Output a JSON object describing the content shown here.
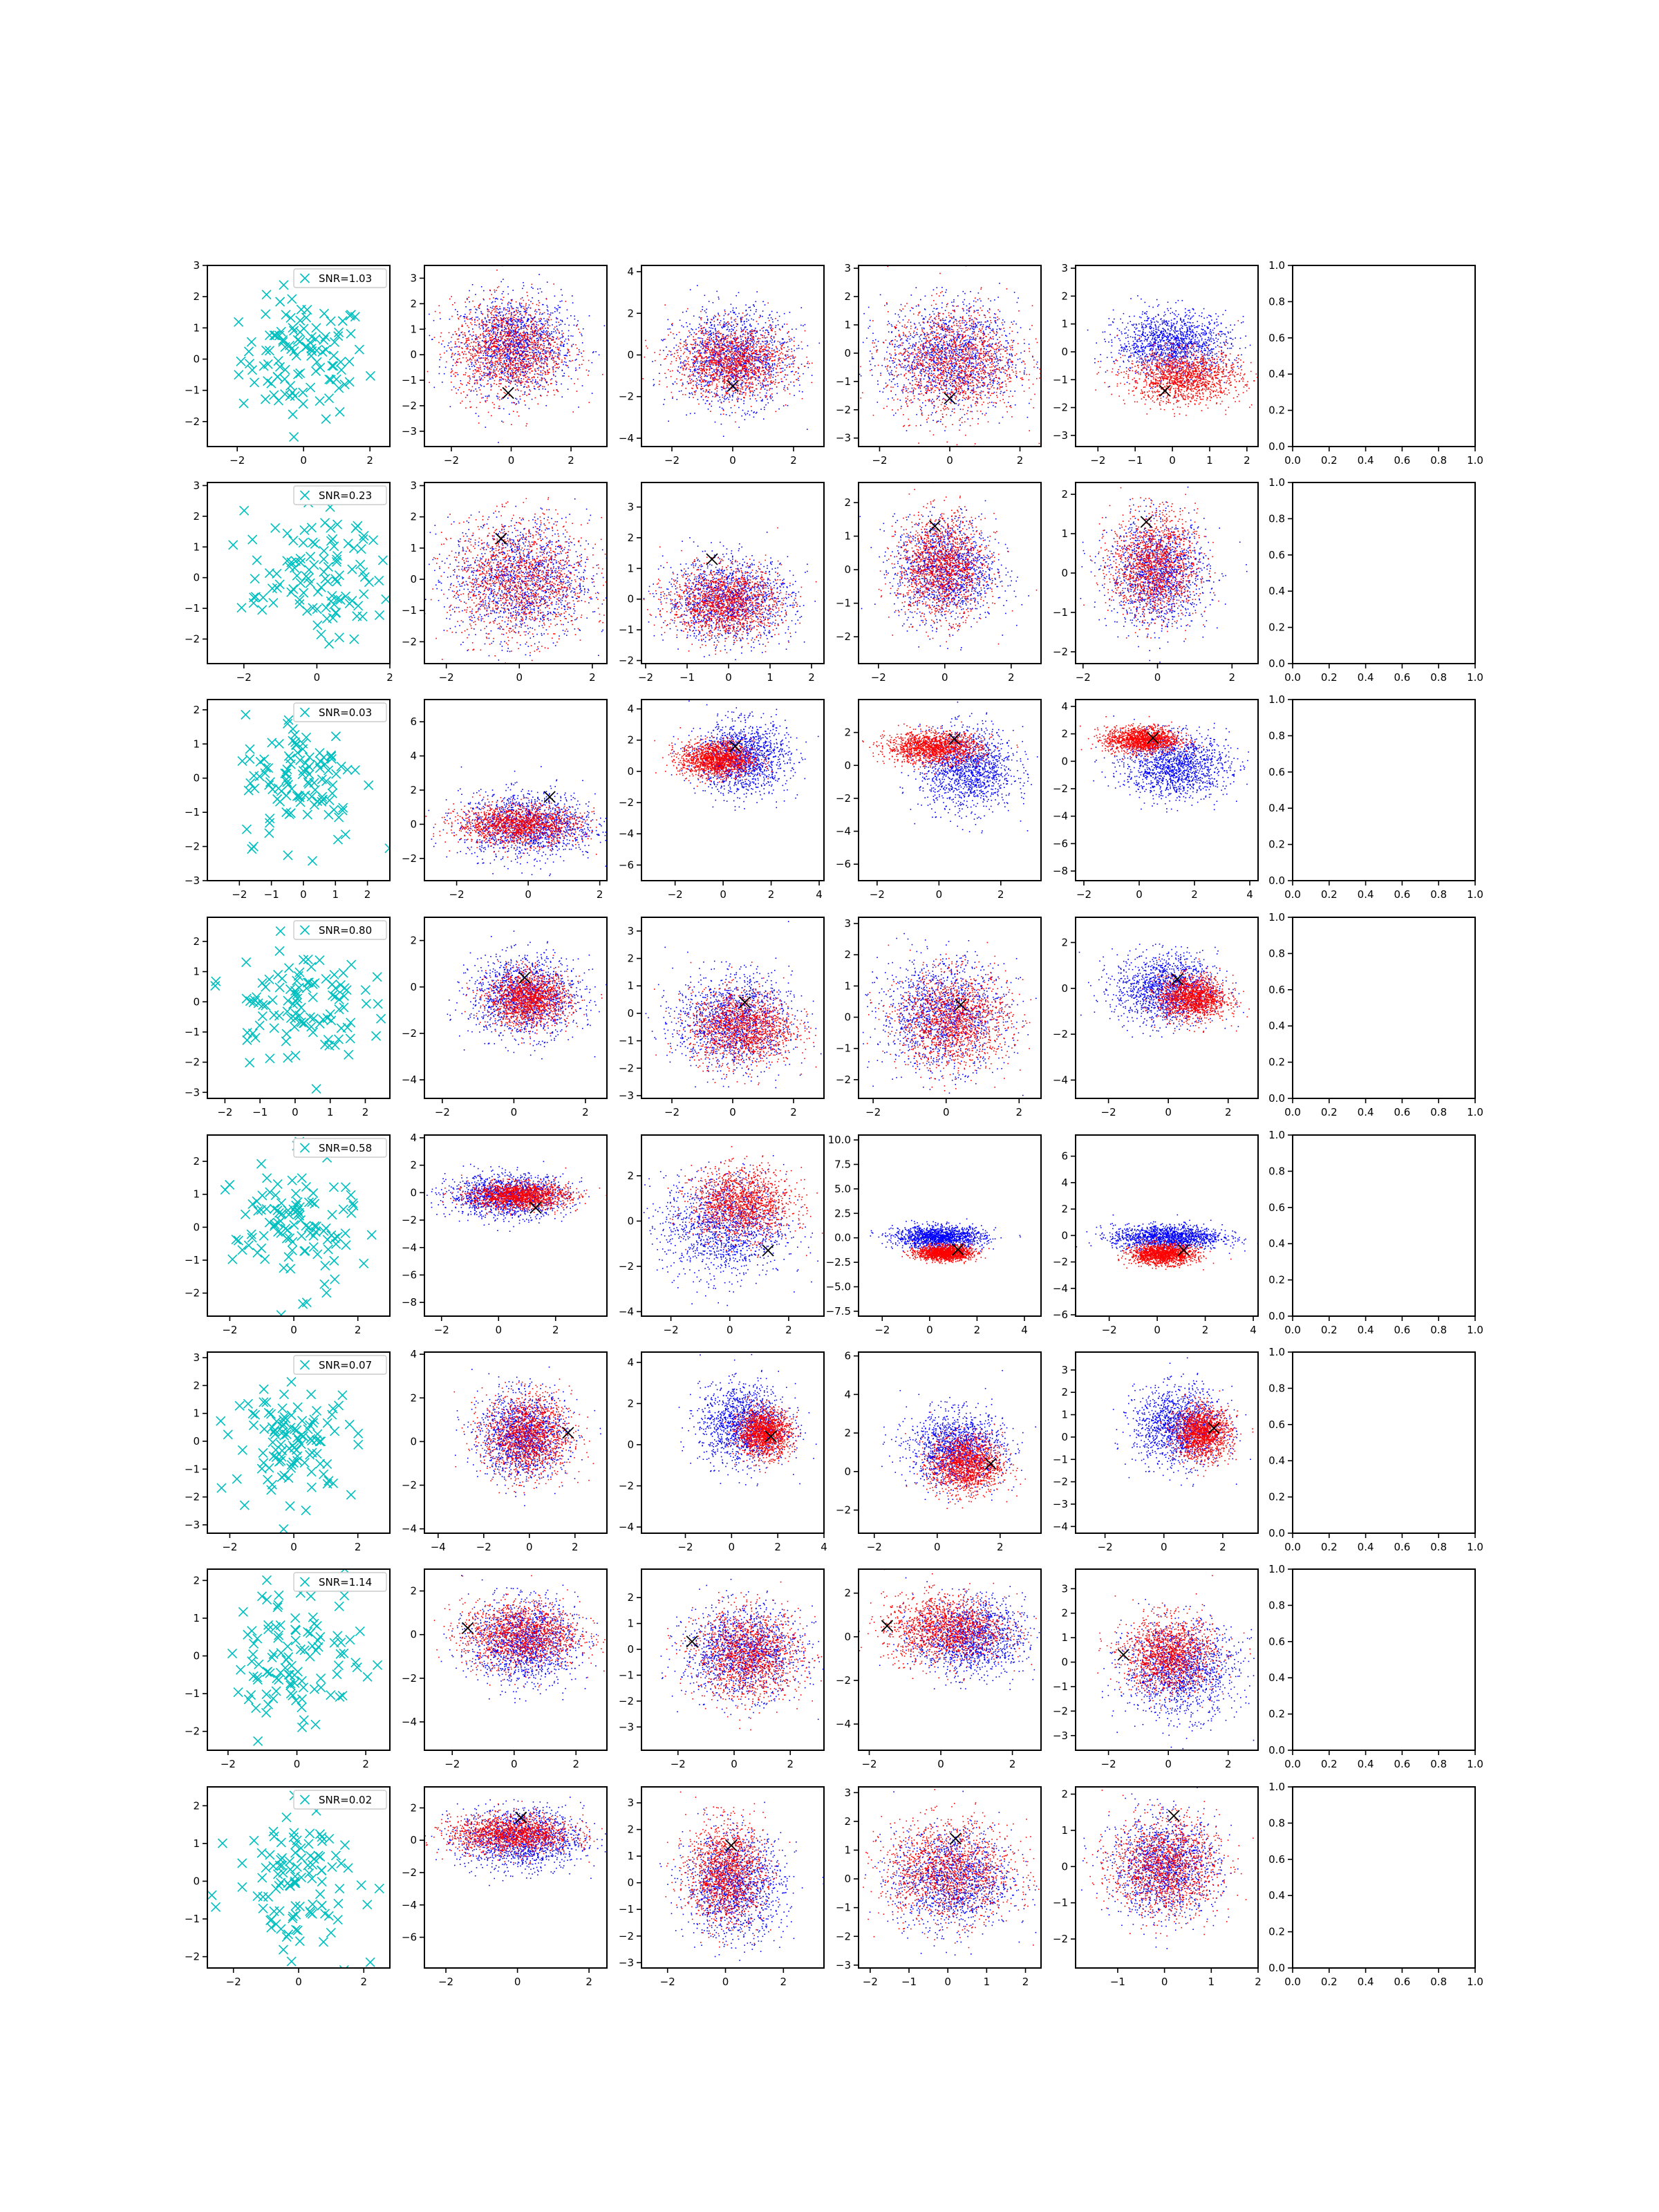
{
  "figure": {
    "type": "scatter-grid",
    "rows": 8,
    "cols": 6
  },
  "colors": {
    "samples": "#00bfbf",
    "class_a": "#0000ff",
    "class_b": "#ff0000",
    "marker": "#000000"
  },
  "legend_prefix": "SNR=",
  "empty_axis_ticks": [
    "0.0",
    "0.2",
    "0.4",
    "0.6",
    "0.8",
    "1.0"
  ],
  "chart_data": [
    {
      "row": 0,
      "snr": "1.03",
      "xlims": [
        [
          -2.9,
          2.6
        ],
        [
          -2.9,
          3.2
        ],
        [
          -3.0,
          3.0
        ],
        [
          -2.6,
          2.6
        ],
        [
          -2.6,
          2.3
        ]
      ],
      "ylims": [
        [
          -2.8,
          3.0
        ],
        [
          -3.6,
          3.5
        ],
        [
          -4.4,
          4.3
        ],
        [
          -3.3,
          3.1
        ],
        [
          -3.4,
          3.1
        ]
      ],
      "xticks": [
        [
          -2,
          0,
          2
        ],
        [
          -2,
          0,
          2
        ],
        [
          -2,
          0,
          2
        ],
        [
          -2,
          0,
          2
        ],
        [
          -2,
          -1,
          0,
          1,
          2
        ]
      ],
      "yticks": [
        [
          -2,
          -1,
          0,
          1,
          2,
          3
        ],
        [
          -3,
          -2,
          -1,
          0,
          1,
          2,
          3
        ],
        [
          -4,
          -2,
          0,
          2,
          4
        ],
        [
          -3,
          -2,
          -1,
          0,
          1,
          2,
          3
        ],
        [
          -3,
          -2,
          -1,
          0,
          1,
          2,
          3
        ]
      ],
      "marks": [
        [
          -0.1,
          -1.5
        ],
        [
          0.0,
          -1.5
        ],
        [
          0.0,
          -1.6
        ],
        [
          -0.2,
          -1.4
        ]
      ],
      "blue": [
        [
          0.1,
          0.4,
          1,
          1
        ],
        [
          0.0,
          -0.1,
          1,
          1.2
        ],
        [
          0.0,
          -0.1,
          1,
          1
        ],
        [
          0.0,
          0.3,
          0.8,
          0.6
        ]
      ],
      "red": [
        [
          -0.1,
          0.2,
          1,
          1
        ],
        [
          0.0,
          -0.3,
          1,
          0.9
        ],
        [
          0.1,
          -0.3,
          1,
          1
        ],
        [
          0.3,
          -0.9,
          0.8,
          0.5
        ]
      ]
    },
    {
      "row": 1,
      "snr": "0.23",
      "xlims": [
        [
          -3.0,
          2.0
        ],
        [
          -2.6,
          2.4
        ],
        [
          -2.1,
          2.3
        ],
        [
          -2.6,
          2.9
        ],
        [
          -2.2,
          2.7
        ]
      ],
      "ylims": [
        [
          -2.8,
          3.1
        ],
        [
          -2.7,
          3.1
        ],
        [
          -2.1,
          3.8
        ],
        [
          -2.8,
          2.6
        ],
        [
          -2.3,
          2.3
        ]
      ],
      "xticks": [
        [
          -2,
          0,
          2
        ],
        [
          -2,
          0,
          2
        ],
        [
          -2,
          -1,
          0,
          1,
          2
        ],
        [
          -2,
          0,
          2
        ],
        [
          -2,
          0,
          2
        ]
      ],
      "yticks": [
        [
          -2,
          -1,
          0,
          1,
          2,
          3
        ],
        [
          -2,
          -1,
          0,
          1,
          2,
          3
        ],
        [
          -2,
          -1,
          0,
          1,
          2,
          3
        ],
        [
          -2,
          -1,
          0,
          1,
          2
        ],
        [
          -2,
          -1,
          0,
          1,
          2
        ]
      ],
      "marks": [
        [
          -0.5,
          1.3
        ],
        [
          -0.4,
          1.3
        ],
        [
          -0.3,
          1.3
        ],
        [
          -0.3,
          1.3
        ]
      ],
      "blue": [
        [
          0.0,
          0.0,
          1,
          1
        ],
        [
          0.0,
          0.0,
          0.8,
          0.7
        ],
        [
          0.0,
          0.0,
          0.8,
          0.8
        ],
        [
          0.0,
          0.0,
          0.7,
          0.7
        ]
      ],
      "red": [
        [
          0.0,
          0.0,
          1,
          1
        ],
        [
          -0.1,
          -0.1,
          0.7,
          0.6
        ],
        [
          -0.1,
          0.1,
          0.7,
          0.8
        ],
        [
          -0.1,
          0.2,
          0.6,
          0.7
        ]
      ]
    },
    {
      "row": 2,
      "snr": "0.03",
      "xlims": [
        [
          -3.0,
          2.7
        ],
        [
          -2.9,
          2.2
        ],
        [
          -3.4,
          4.2
        ],
        [
          -2.6,
          3.3
        ],
        [
          -2.3,
          4.3
        ]
      ],
      "ylims": [
        [
          -3.0,
          2.3
        ],
        [
          -3.3,
          7.3
        ],
        [
          -7.0,
          4.6
        ],
        [
          -7.0,
          4.0
        ],
        [
          -8.7,
          4.5
        ]
      ],
      "xticks": [
        [
          -2,
          -1,
          0,
          1,
          2
        ],
        [
          -2,
          0,
          2
        ],
        [
          -2,
          0,
          2,
          4
        ],
        [
          -2,
          0,
          2
        ],
        [
          -2,
          0,
          2,
          4
        ]
      ],
      "yticks": [
        [
          -3,
          -2,
          -1,
          0,
          1,
          2
        ],
        [
          -2,
          0,
          2,
          4,
          6
        ],
        [
          -6,
          -4,
          -2,
          0,
          2,
          4
        ],
        [
          -6,
          -4,
          -2,
          0,
          2
        ],
        [
          -8,
          -6,
          -4,
          -2,
          0,
          2,
          4
        ]
      ],
      "marks": [
        [
          0.6,
          1.6
        ],
        [
          0.5,
          1.6
        ],
        [
          0.5,
          1.6
        ],
        [
          0.5,
          1.7
        ]
      ],
      "blue": [
        [
          0.0,
          0.0,
          1,
          1
        ],
        [
          0.8,
          0.9,
          1,
          1.2
        ],
        [
          0.9,
          -0.2,
          0.8,
          1.3
        ],
        [
          1.3,
          -0.3,
          1,
          1.2
        ]
      ],
      "red": [
        [
          -0.3,
          0.0,
          0.9,
          0.6
        ],
        [
          -0.3,
          0.8,
          0.8,
          0.6
        ],
        [
          -0.2,
          1.1,
          0.8,
          0.5
        ],
        [
          0.1,
          1.6,
          0.7,
          0.5
        ]
      ]
    },
    {
      "row": 3,
      "snr": "0.80",
      "xlims": [
        [
          -2.5,
          2.7
        ],
        [
          -2.5,
          2.6
        ],
        [
          -3.0,
          3.0
        ],
        [
          -2.4,
          2.6
        ],
        [
          -3.1,
          3.0
        ]
      ],
      "ylims": [
        [
          -3.2,
          2.8
        ],
        [
          -4.8,
          3.0
        ],
        [
          -3.1,
          3.5
        ],
        [
          -2.6,
          3.2
        ],
        [
          -4.8,
          3.1
        ]
      ],
      "xticks": [
        [
          -2,
          -1,
          0,
          1,
          2
        ],
        [
          -2,
          0,
          2
        ],
        [
          -2,
          0,
          2
        ],
        [
          -2,
          0,
          2
        ],
        [
          -2,
          0,
          2
        ]
      ],
      "yticks": [
        [
          -3,
          -2,
          -1,
          0,
          1,
          2
        ],
        [
          -4,
          -2,
          0,
          2
        ],
        [
          -3,
          -2,
          -1,
          0,
          1,
          2,
          3
        ],
        [
          -2,
          -1,
          0,
          1,
          2,
          3
        ],
        [
          -4,
          -2,
          0,
          2
        ]
      ],
      "marks": [
        [
          0.3,
          0.4
        ],
        [
          0.4,
          0.4
        ],
        [
          0.4,
          0.4
        ],
        [
          0.3,
          0.4
        ]
      ],
      "blue": [
        [
          0.3,
          -0.4,
          0.8,
          0.9
        ],
        [
          0.0,
          -0.3,
          1,
          0.9
        ],
        [
          -0.1,
          0.1,
          0.9,
          0.9
        ],
        [
          -0.1,
          0.0,
          0.9,
          0.8
        ]
      ],
      "red": [
        [
          0.4,
          -0.5,
          0.6,
          0.6
        ],
        [
          0.3,
          -0.5,
          0.9,
          0.7
        ],
        [
          0.2,
          -0.1,
          0.8,
          0.8
        ],
        [
          0.8,
          -0.4,
          0.6,
          0.5
        ]
      ]
    },
    {
      "row": 4,
      "snr": "0.58",
      "xlims": [
        [
          -2.7,
          3.0
        ],
        [
          -2.6,
          3.8
        ],
        [
          -3.0,
          3.2
        ],
        [
          -3.0,
          4.7
        ],
        [
          -3.4,
          4.2
        ]
      ],
      "ylims": [
        [
          -2.7,
          2.8
        ],
        [
          -9.0,
          4.2
        ],
        [
          -4.2,
          3.8
        ],
        [
          -8.0,
          10.5
        ],
        [
          -6.1,
          7.6
        ]
      ],
      "xticks": [
        [
          -2,
          0,
          2
        ],
        [
          -2,
          0,
          2
        ],
        [
          -2,
          0,
          2
        ],
        [
          -2,
          0,
          2,
          4
        ],
        [
          -2,
          0,
          2,
          4
        ]
      ],
      "yticks": [
        [
          -2,
          -1,
          0,
          1,
          2
        ],
        [
          -8,
          -6,
          -4,
          -2,
          0,
          2,
          4
        ],
        [
          -4,
          -2,
          0,
          2
        ],
        [
          -7.5,
          -5.0,
          -2.5,
          0.0,
          2.5,
          5.0,
          7.5,
          10.0
        ],
        [
          -6,
          -4,
          -2,
          0,
          2,
          4,
          6
        ]
      ],
      "marks": [
        [
          1.3,
          -1.1
        ],
        [
          1.3,
          -1.3
        ],
        [
          1.2,
          -1.2
        ],
        [
          1.1,
          -1.1
        ]
      ],
      "blue": [
        [
          0.3,
          -0.2,
          1.1,
          0.8
        ],
        [
          -0.2,
          -0.2,
          1.1,
          1.2
        ],
        [
          0.4,
          0.1,
          1,
          0.6
        ],
        [
          0.4,
          -0.1,
          1.2,
          0.5
        ]
      ],
      "red": [
        [
          0.7,
          -0.2,
          0.9,
          0.5
        ],
        [
          0.4,
          0.8,
          0.9,
          0.8
        ],
        [
          0.6,
          -1.5,
          0.6,
          0.4
        ],
        [
          0.2,
          -1.4,
          0.7,
          0.4
        ]
      ]
    },
    {
      "row": 5,
      "snr": "0.07",
      "xlims": [
        [
          -2.7,
          3.0
        ],
        [
          -4.6,
          3.4
        ],
        [
          -3.9,
          4.0
        ],
        [
          -2.5,
          3.3
        ],
        [
          -3.0,
          3.2
        ]
      ],
      "ylims": [
        [
          -3.3,
          3.2
        ],
        [
          -4.2,
          4.1
        ],
        [
          -4.3,
          4.5
        ],
        [
          -3.2,
          6.2
        ],
        [
          -4.3,
          3.8
        ]
      ],
      "xticks": [
        [
          -2,
          0,
          2
        ],
        [
          -4,
          -2,
          0,
          2
        ],
        [
          -2,
          0,
          2,
          4
        ],
        [
          -2,
          0,
          2
        ],
        [
          -2,
          0,
          2
        ]
      ],
      "yticks": [
        [
          -3,
          -2,
          -1,
          0,
          1,
          2,
          3
        ],
        [
          -4,
          -2,
          0,
          2,
          4
        ],
        [
          -4,
          -2,
          0,
          2,
          4
        ],
        [
          -2,
          0,
          2,
          4,
          6
        ],
        [
          -4,
          -3,
          -2,
          -1,
          0,
          1,
          2,
          3
        ]
      ],
      "marks": [
        [
          1.7,
          0.4
        ],
        [
          1.7,
          0.4
        ],
        [
          1.7,
          0.4
        ],
        [
          1.7,
          0.4
        ]
      ],
      "blue": [
        [
          -0.3,
          0.3,
          1,
          1
        ],
        [
          0.5,
          1.0,
          1,
          1
        ],
        [
          0.6,
          1.2,
          0.8,
          1
        ],
        [
          0.5,
          0.5,
          0.8,
          0.9
        ]
      ],
      "red": [
        [
          -0.1,
          0.3,
          1,
          1
        ],
        [
          1.4,
          0.6,
          0.6,
          0.6
        ],
        [
          0.9,
          0.4,
          0.6,
          0.8
        ],
        [
          1.3,
          0.2,
          0.5,
          0.6
        ]
      ]
    },
    {
      "row": 6,
      "snr": "1.14",
      "xlims": [
        [
          -2.6,
          2.7
        ],
        [
          -2.9,
          3.0
        ],
        [
          -3.3,
          3.2
        ],
        [
          -2.3,
          2.8
        ],
        [
          -3.1,
          3.0
        ]
      ],
      "ylims": [
        [
          -2.5,
          2.3
        ],
        [
          -5.3,
          3.0
        ],
        [
          -3.9,
          3.1
        ],
        [
          -5.2,
          3.1
        ],
        [
          -3.6,
          3.8
        ]
      ],
      "xticks": [
        [
          -2,
          0,
          2
        ],
        [
          -2,
          0,
          2
        ],
        [
          -2,
          0,
          2
        ],
        [
          -2,
          0,
          2
        ],
        [
          -2,
          0,
          2
        ]
      ],
      "yticks": [
        [
          -2,
          -1,
          0,
          1,
          2
        ],
        [
          -4,
          -2,
          0,
          2
        ],
        [
          -3,
          -2,
          -1,
          0,
          1,
          2
        ],
        [
          -4,
          -2,
          0,
          2
        ],
        [
          -3,
          -2,
          -1,
          0,
          1,
          2,
          3
        ]
      ],
      "marks": [
        [
          -1.5,
          0.3
        ],
        [
          -1.5,
          0.3
        ],
        [
          -1.5,
          0.5
        ],
        [
          -1.5,
          0.3
        ]
      ],
      "blue": [
        [
          0.3,
          -0.3,
          0.9,
          1
        ],
        [
          0.3,
          -0.1,
          1.1,
          0.9
        ],
        [
          0.8,
          0.0,
          0.8,
          0.9
        ],
        [
          0.4,
          -0.3,
          1,
          1
        ]
      ],
      "red": [
        [
          0.2,
          0.0,
          1,
          0.8
        ],
        [
          0.5,
          -0.2,
          1,
          0.9
        ],
        [
          0.1,
          0.4,
          0.9,
          0.8
        ],
        [
          0.0,
          0.3,
          0.8,
          0.8
        ]
      ]
    },
    {
      "row": 7,
      "snr": "0.02",
      "xlims": [
        [
          -2.8,
          2.8
        ],
        [
          -2.6,
          2.5
        ],
        [
          -2.9,
          3.4
        ],
        [
          -2.3,
          2.4
        ],
        [
          -1.9,
          2.0
        ]
      ],
      "ylims": [
        [
          -2.3,
          2.5
        ],
        [
          -7.9,
          3.3
        ],
        [
          -3.2,
          3.6
        ],
        [
          -3.1,
          3.2
        ],
        [
          -2.8,
          2.2
        ]
      ],
      "xticks": [
        [
          -2,
          0,
          2
        ],
        [
          -2,
          0,
          2
        ],
        [
          -2,
          0,
          2
        ],
        [
          -2,
          -1,
          0,
          1,
          2
        ],
        [
          -1,
          0,
          1,
          2
        ]
      ],
      "yticks": [
        [
          -2,
          -1,
          0,
          1,
          2
        ],
        [
          -6,
          -4,
          -2,
          0,
          2
        ],
        [
          -3,
          -2,
          -1,
          0,
          1,
          2,
          3
        ],
        [
          -3,
          -2,
          -1,
          0,
          1,
          2,
          3
        ],
        [
          -2,
          -1,
          0,
          1,
          2
        ]
      ],
      "marks": [
        [
          0.1,
          1.4
        ],
        [
          0.2,
          1.4
        ],
        [
          0.2,
          1.4
        ],
        [
          0.2,
          1.4
        ]
      ],
      "blue": [
        [
          0.1,
          0.1,
          0.9,
          1
        ],
        [
          0.3,
          -0.1,
          0.9,
          1
        ],
        [
          0.1,
          0.0,
          0.8,
          0.9
        ],
        [
          0.0,
          0.0,
          0.6,
          0.7
        ]
      ],
      "red": [
        [
          -0.2,
          0.4,
          0.9,
          0.6
        ],
        [
          0.0,
          0.4,
          0.7,
          1
        ],
        [
          0.0,
          0.3,
          0.9,
          0.9
        ],
        [
          0.0,
          0.0,
          0.6,
          0.7
        ]
      ]
    }
  ]
}
